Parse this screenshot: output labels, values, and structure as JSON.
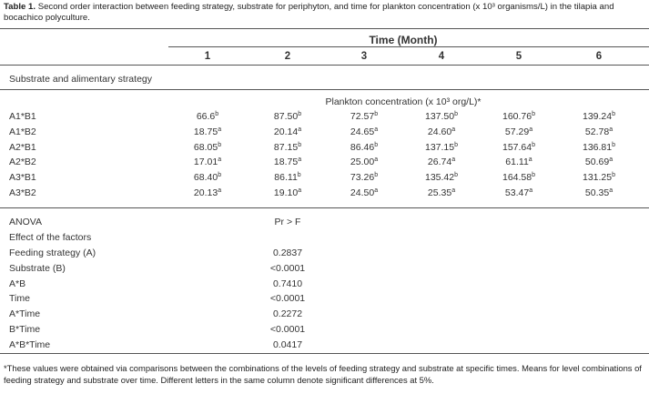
{
  "caption": {
    "label": "Table 1.",
    "text": "Second order interaction between feeding strategy, substrate for periphyton, and time for plankton concentration (x 10³ organisms/L) in the tilapia and bocachico polyculture."
  },
  "table": {
    "time_header": "Time (Month)",
    "columns": [
      "1",
      "2",
      "3",
      "4",
      "5",
      "6"
    ],
    "section_title": "Substrate and alimentary strategy",
    "subheader": "Plankton concentration (x 10³ org/L)*",
    "rows": [
      {
        "label": "A1*B1",
        "cells": [
          {
            "value": "66.6",
            "sup": "b"
          },
          {
            "value": "87.50",
            "sup": "b"
          },
          {
            "value": "72.57",
            "sup": "b"
          },
          {
            "value": "137.50",
            "sup": "b"
          },
          {
            "value": "160.76",
            "sup": "b"
          },
          {
            "value": "139.24",
            "sup": "b"
          }
        ]
      },
      {
        "label": "A1*B2",
        "cells": [
          {
            "value": "18.75",
            "sup": "a"
          },
          {
            "value": "20.14",
            "sup": "a"
          },
          {
            "value": "24.65",
            "sup": "a"
          },
          {
            "value": "24.60",
            "sup": "a"
          },
          {
            "value": "57.29",
            "sup": "a"
          },
          {
            "value": "52.78",
            "sup": "a"
          }
        ]
      },
      {
        "label": "A2*B1",
        "cells": [
          {
            "value": "68.05",
            "sup": "b"
          },
          {
            "value": "87.15",
            "sup": "b"
          },
          {
            "value": "86.46",
            "sup": "b"
          },
          {
            "value": "137.15",
            "sup": "b"
          },
          {
            "value": "157.64",
            "sup": "b"
          },
          {
            "value": "136.81",
            "sup": "b"
          }
        ]
      },
      {
        "label": "A2*B2",
        "cells": [
          {
            "value": "17.01",
            "sup": "a"
          },
          {
            "value": "18.75",
            "sup": "a"
          },
          {
            "value": "25.00",
            "sup": "a"
          },
          {
            "value": "26.74",
            "sup": "a"
          },
          {
            "value": "61.11",
            "sup": "a"
          },
          {
            "value": "50.69",
            "sup": "a"
          }
        ]
      },
      {
        "label": "A3*B1",
        "cells": [
          {
            "value": "68.40",
            "sup": "b"
          },
          {
            "value": "86.11",
            "sup": "b"
          },
          {
            "value": "73.26",
            "sup": "b"
          },
          {
            "value": "135.42",
            "sup": "b"
          },
          {
            "value": "164.58",
            "sup": "b"
          },
          {
            "value": "131.25",
            "sup": "b"
          }
        ]
      },
      {
        "label": "A3*B2",
        "cells": [
          {
            "value": "20.13",
            "sup": "a"
          },
          {
            "value": "19.10",
            "sup": "a"
          },
          {
            "value": "24.50",
            "sup": "a"
          },
          {
            "value": "25.35",
            "sup": "a"
          },
          {
            "value": "53.47",
            "sup": "a"
          },
          {
            "value": "50.35",
            "sup": "a"
          }
        ]
      }
    ]
  },
  "anova": {
    "header": [
      "ANOVA",
      "Pr > F"
    ],
    "subtitle": "Effect of the factors",
    "rows": [
      [
        "Feeding strategy (A)",
        "0.2837"
      ],
      [
        "Substrate (B)",
        "<0.0001"
      ],
      [
        "A*B",
        "0.7410"
      ],
      [
        "Time",
        "<0.0001"
      ],
      [
        "A*Time",
        "0.2272"
      ],
      [
        "B*Time",
        "<0.0001"
      ],
      [
        "A*B*Time",
        "0.0417"
      ]
    ]
  },
  "footnote": "*These values were obtained via comparisons between the combinations of the levels of feeding strategy and substrate at specific times. Means for level combinations of feeding strategy and substrate over time. Different letters in the same column denote significant differences at 5%."
}
